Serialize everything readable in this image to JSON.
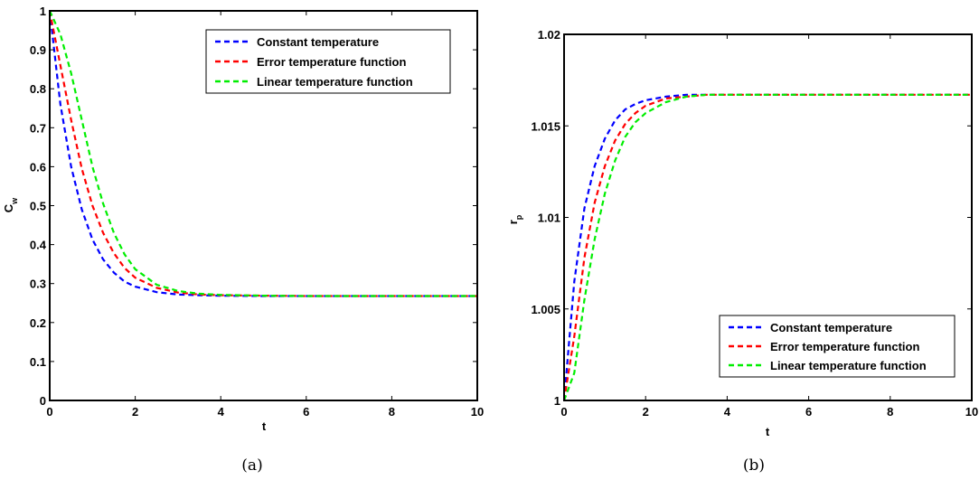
{
  "chart_data": [
    {
      "type": "line",
      "title": "",
      "caption": "(a)",
      "xlabel": "t",
      "ylabel_main": "C",
      "ylabel_sub": "w",
      "xlim": [
        0,
        10
      ],
      "ylim": [
        0,
        1
      ],
      "xticks": [
        "0",
        "2",
        "4",
        "6",
        "8",
        "10"
      ],
      "yticks": [
        "0",
        "0.1",
        "0.2",
        "0.3",
        "0.4",
        "0.5",
        "0.6",
        "0.7",
        "0.8",
        "0.9",
        "1"
      ],
      "legend_position": "top-right",
      "grid": false,
      "x": [
        0,
        0.25,
        0.5,
        0.75,
        1,
        1.25,
        1.5,
        1.75,
        2,
        2.5,
        3,
        3.5,
        4,
        5,
        6,
        7,
        8,
        9,
        10
      ],
      "series": [
        {
          "name": "Constant temperature",
          "color": "#0000ff",
          "values": [
            1,
            0.76,
            0.6,
            0.49,
            0.413,
            0.362,
            0.328,
            0.305,
            0.292,
            0.278,
            0.272,
            0.27,
            0.269,
            0.268,
            0.268,
            0.268,
            0.268,
            0.268,
            0.268
          ]
        },
        {
          "name": "Error temperature function",
          "color": "#ff0000",
          "values": [
            1,
            0.86,
            0.72,
            0.595,
            0.5,
            0.43,
            0.378,
            0.34,
            0.315,
            0.289,
            0.277,
            0.272,
            0.27,
            0.269,
            0.268,
            0.268,
            0.268,
            0.268,
            0.268
          ]
        },
        {
          "name": "Linear temperature function",
          "color": "#00ee00",
          "values": [
            1,
            0.94,
            0.84,
            0.72,
            0.6,
            0.505,
            0.43,
            0.375,
            0.337,
            0.297,
            0.281,
            0.274,
            0.271,
            0.269,
            0.268,
            0.268,
            0.268,
            0.268,
            0.268
          ]
        }
      ]
    },
    {
      "type": "line",
      "title": "",
      "caption": "(b)",
      "xlabel": "t",
      "ylabel_main": "r",
      "ylabel_sub": "p",
      "xlim": [
        0,
        10
      ],
      "ylim": [
        1,
        1.02
      ],
      "xticks": [
        "0",
        "2",
        "4",
        "6",
        "8",
        "10"
      ],
      "yticks": [
        "1",
        "1.005",
        "1.01",
        "1.015",
        "1.02"
      ],
      "legend_position": "bottom-right",
      "grid": false,
      "x": [
        0,
        0.25,
        0.5,
        0.75,
        1,
        1.25,
        1.5,
        1.75,
        2,
        2.5,
        3,
        3.5,
        4,
        5,
        6,
        7,
        8,
        9,
        10
      ],
      "series": [
        {
          "name": "Constant temperature",
          "color": "#0000ff",
          "values": [
            1.0,
            1.0065,
            1.0105,
            1.0128,
            1.0143,
            1.0153,
            1.0159,
            1.0162,
            1.0164,
            1.0166,
            1.0167,
            1.0167,
            1.0167,
            1.0167,
            1.0167,
            1.0167,
            1.0167,
            1.0167,
            1.0167
          ]
        },
        {
          "name": "Error temperature function",
          "color": "#ff0000",
          "values": [
            1.0,
            1.0035,
            1.0078,
            1.0108,
            1.0128,
            1.0142,
            1.0151,
            1.0157,
            1.0161,
            1.0165,
            1.0166,
            1.0167,
            1.0167,
            1.0167,
            1.0167,
            1.0167,
            1.0167,
            1.0167,
            1.0167
          ]
        },
        {
          "name": "Linear temperature function",
          "color": "#00ee00",
          "values": [
            1.0,
            1.0015,
            1.0055,
            1.0088,
            1.0113,
            1.0131,
            1.0144,
            1.0152,
            1.0157,
            1.0163,
            1.0166,
            1.0167,
            1.0167,
            1.0167,
            1.0167,
            1.0167,
            1.0167,
            1.0167,
            1.0167
          ]
        }
      ]
    }
  ]
}
